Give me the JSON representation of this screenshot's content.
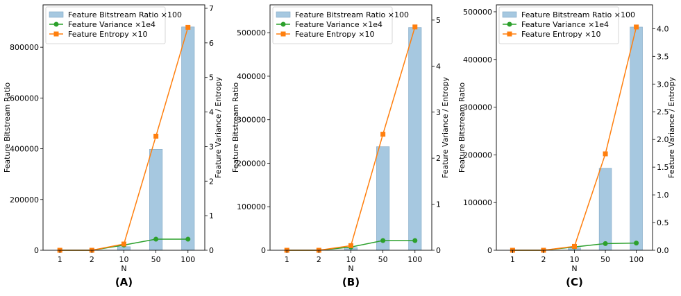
{
  "colors": {
    "bar": "#a6c8e0",
    "bar_edge": "#7fa6c4",
    "variance": "#2ca02c",
    "entropy": "#ff7f0e"
  },
  "chart_data": [
    {
      "type": "bar+line",
      "panel_label": "(A)",
      "xlabel": "N",
      "ylabel_left": "Feature Bitstream Ratio",
      "ylabel_right": "Feature Variance / Entropy",
      "categories": [
        "1",
        "2",
        "10",
        "50",
        "100"
      ],
      "ylim_left": [
        0,
        967000
      ],
      "ylim_right": [
        0,
        7.1
      ],
      "yticks_left": [
        0,
        200000,
        400000,
        600000,
        800000
      ],
      "yticks_right": [
        0,
        1,
        2,
        3,
        4,
        5,
        6,
        7
      ],
      "legend_position": "top-left",
      "grid": false,
      "series": [
        {
          "name": "Feature Bitstream Ratio ×100",
          "type": "bar",
          "axis": "left",
          "values": [
            0,
            0,
            14000,
            398000,
            880000
          ]
        },
        {
          "name": "Feature Variance ×1e4",
          "type": "line",
          "marker": "circle",
          "axis": "right",
          "values": [
            0,
            0,
            0.15,
            0.32,
            0.32
          ]
        },
        {
          "name": "Feature Entropy ×10",
          "type": "line",
          "marker": "square",
          "axis": "right",
          "values": [
            0,
            0,
            0.18,
            3.3,
            6.45
          ]
        }
      ]
    },
    {
      "type": "bar+line",
      "panel_label": "(B)",
      "xlabel": "N",
      "ylabel_left": "Feature Bitstream Ratio",
      "ylabel_right": "Feature Variance / Entropy",
      "categories": [
        "1",
        "2",
        "10",
        "50",
        "100"
      ],
      "ylim_left": [
        0,
        564000
      ],
      "ylim_right": [
        0,
        5.33
      ],
      "yticks_left": [
        0,
        100000,
        200000,
        300000,
        400000,
        500000
      ],
      "yticks_right": [
        0,
        1,
        2,
        3,
        4,
        5
      ],
      "legend_position": "top-left",
      "grid": false,
      "series": [
        {
          "name": "Feature Bitstream Ratio ×100",
          "type": "bar",
          "axis": "left",
          "values": [
            0,
            0,
            6000,
            238000,
            512000
          ]
        },
        {
          "name": "Feature Variance ×1e4",
          "type": "line",
          "marker": "circle",
          "axis": "right",
          "values": [
            0,
            0,
            0.07,
            0.21,
            0.21
          ]
        },
        {
          "name": "Feature Entropy ×10",
          "type": "line",
          "marker": "square",
          "axis": "right",
          "values": [
            0,
            0,
            0.1,
            2.52,
            4.85
          ]
        }
      ]
    },
    {
      "type": "bar+line",
      "panel_label": "(C)",
      "xlabel": "N",
      "ylabel_left": "Feature Bitstream Ratio",
      "ylabel_right": "Feature Variance / Entropy",
      "categories": [
        "1",
        "2",
        "10",
        "50",
        "100"
      ],
      "ylim_left": [
        0,
        514500
      ],
      "ylim_right": [
        0,
        4.43
      ],
      "yticks_left": [
        0,
        100000,
        200000,
        300000,
        400000,
        500000
      ],
      "yticks_right": [
        "0.0",
        "0.5",
        "1.0",
        "1.5",
        "2.0",
        "2.5",
        "3.0",
        "3.5",
        "4.0"
      ],
      "legend_position": "top-left",
      "grid": false,
      "series": [
        {
          "name": "Feature Bitstream Ratio ×100",
          "type": "bar",
          "axis": "left",
          "values": [
            0,
            0,
            5000,
            172000,
            468000
          ]
        },
        {
          "name": "Feature Variance ×1e4",
          "type": "line",
          "marker": "circle",
          "axis": "right",
          "values": [
            0,
            0,
            0.06,
            0.12,
            0.13
          ]
        },
        {
          "name": "Feature Entropy ×10",
          "type": "line",
          "marker": "square",
          "axis": "right",
          "values": [
            0,
            0,
            0.07,
            1.74,
            4.03
          ]
        }
      ]
    }
  ]
}
